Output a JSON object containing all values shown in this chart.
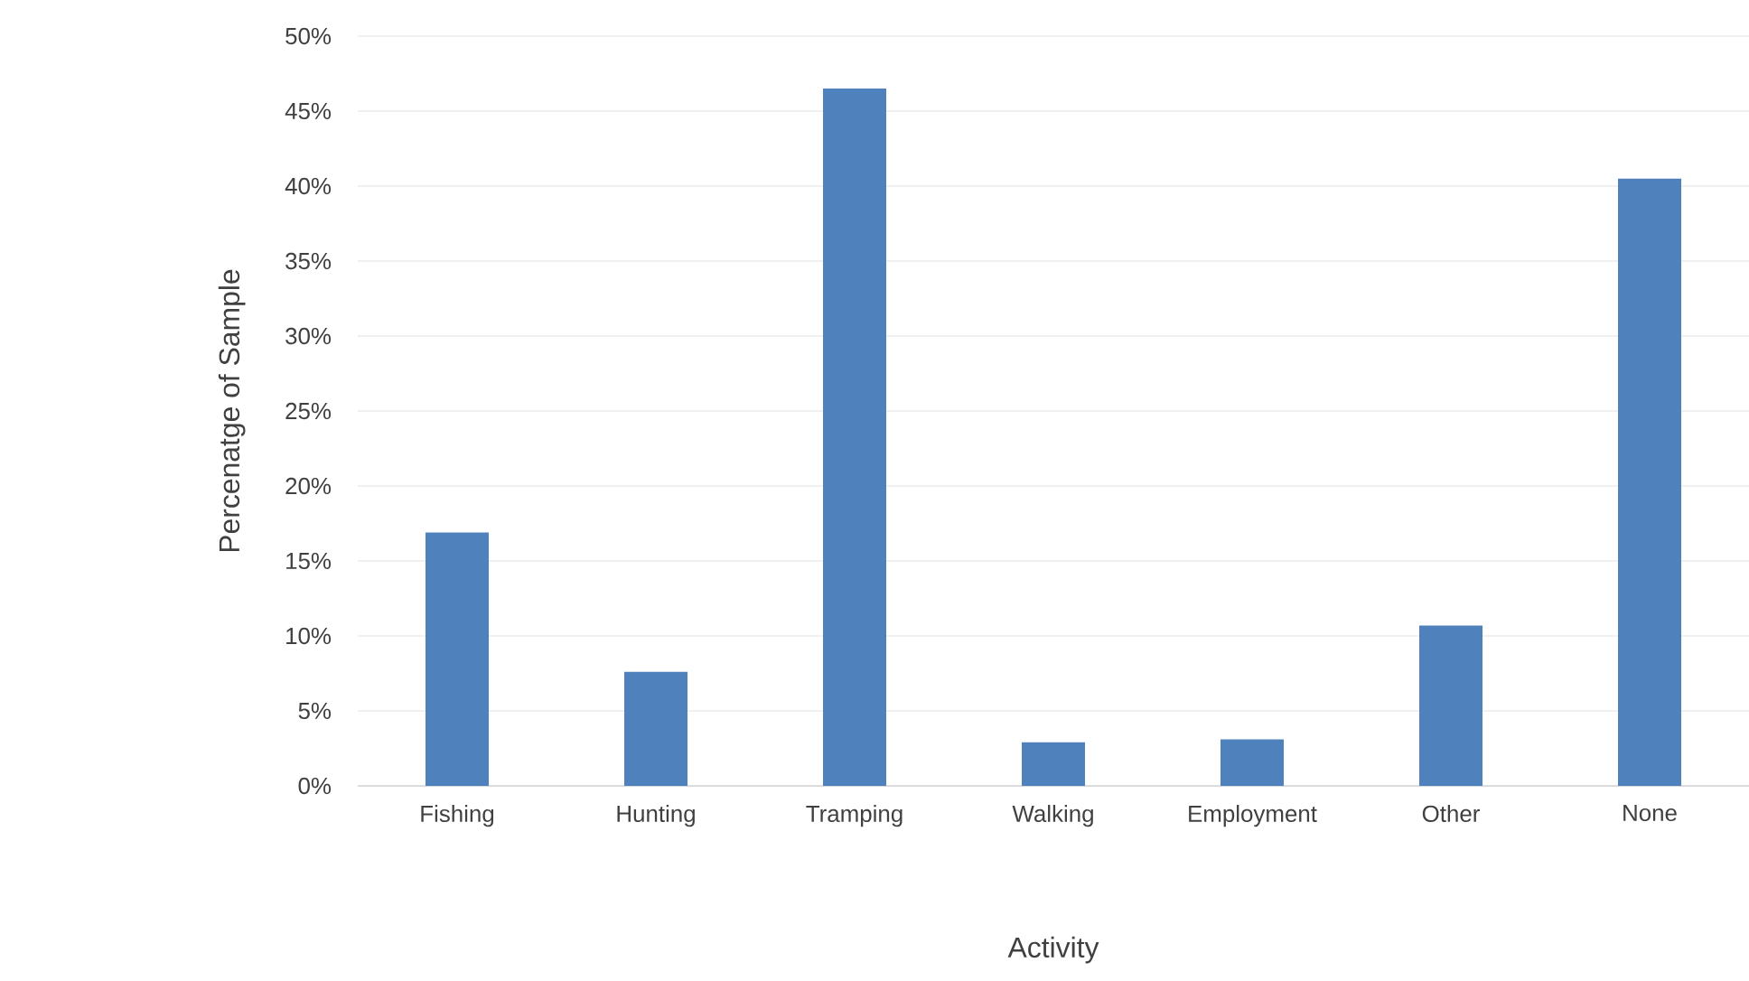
{
  "chart_data": {
    "type": "bar",
    "xlabel": "Activity",
    "ylabel": "Percenatge of Sample",
    "categories": [
      "Fishing",
      "Hunting",
      "Tramping",
      "Walking",
      "Employment",
      "Other",
      "None"
    ],
    "values": [
      16.9,
      7.6,
      46.5,
      2.9,
      3.1,
      10.7,
      40.5
    ],
    "color": "#4f81bd",
    "ylim": [
      0,
      50
    ],
    "yticks": [
      {
        "value": 0,
        "label": "0%"
      },
      {
        "value": 5,
        "label": "5%"
      },
      {
        "value": 10,
        "label": "10%"
      },
      {
        "value": 15,
        "label": "15%"
      },
      {
        "value": 20,
        "label": "20%"
      },
      {
        "value": 25,
        "label": "25%"
      },
      {
        "value": 30,
        "label": "30%"
      },
      {
        "value": 35,
        "label": "35%"
      },
      {
        "value": 40,
        "label": "40%"
      },
      {
        "value": 45,
        "label": "45%"
      },
      {
        "value": 50,
        "label": "50%"
      }
    ],
    "grid": "y"
  }
}
